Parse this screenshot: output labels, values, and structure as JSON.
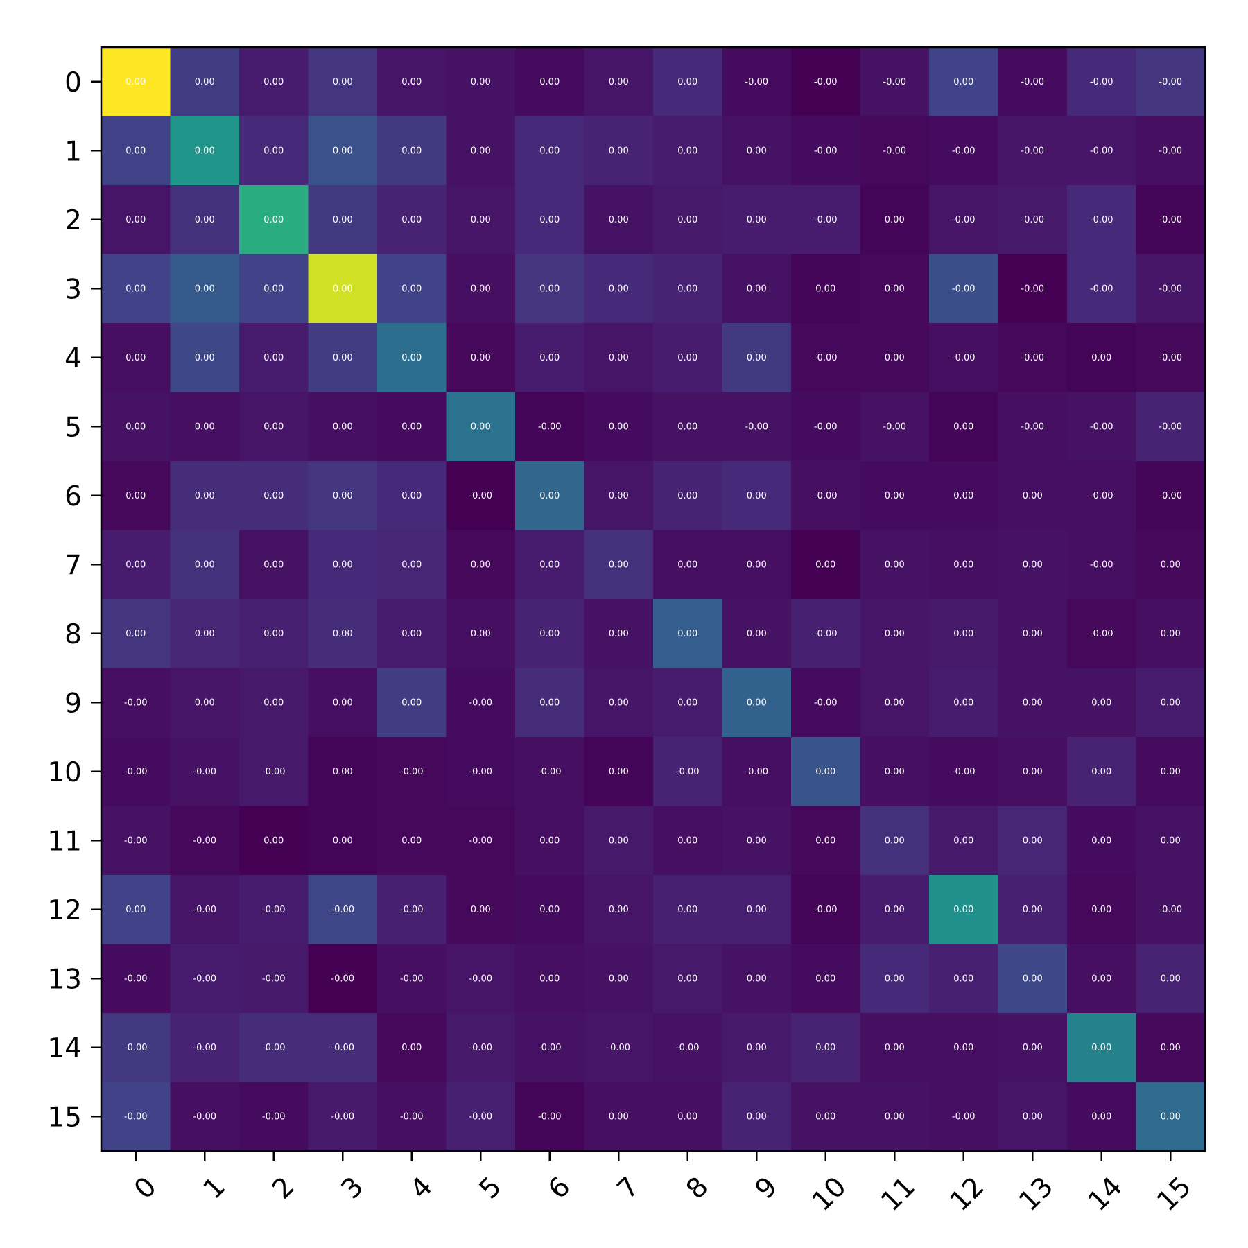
{
  "chart_data": {
    "type": "heatmap",
    "colormap": "viridis",
    "x_tick_labels": [
      "0",
      "1",
      "2",
      "3",
      "4",
      "5",
      "6",
      "7",
      "8",
      "9",
      "10",
      "11",
      "12",
      "13",
      "14",
      "15"
    ],
    "y_tick_labels": [
      "0",
      "1",
      "2",
      "3",
      "4",
      "5",
      "6",
      "7",
      "8",
      "9",
      "10",
      "11",
      "12",
      "13",
      "14",
      "15"
    ],
    "cell_labels": [
      [
        "0.00",
        "0.00",
        "0.00",
        "0.00",
        "0.00",
        "0.00",
        "0.00",
        "0.00",
        "0.00",
        "-0.00",
        "-0.00",
        "-0.00",
        "0.00",
        "-0.00",
        "-0.00",
        "-0.00"
      ],
      [
        "0.00",
        "0.00",
        "0.00",
        "0.00",
        "0.00",
        "0.00",
        "0.00",
        "0.00",
        "0.00",
        "0.00",
        "-0.00",
        "-0.00",
        "-0.00",
        "-0.00",
        "-0.00",
        "-0.00"
      ],
      [
        "0.00",
        "0.00",
        "0.00",
        "0.00",
        "0.00",
        "0.00",
        "0.00",
        "0.00",
        "0.00",
        "0.00",
        "-0.00",
        "0.00",
        "-0.00",
        "-0.00",
        "-0.00",
        "-0.00"
      ],
      [
        "0.00",
        "0.00",
        "0.00",
        "0.00",
        "0.00",
        "0.00",
        "0.00",
        "0.00",
        "0.00",
        "0.00",
        "0.00",
        "0.00",
        "-0.00",
        "-0.00",
        "-0.00",
        "-0.00"
      ],
      [
        "0.00",
        "0.00",
        "0.00",
        "0.00",
        "0.00",
        "0.00",
        "0.00",
        "0.00",
        "0.00",
        "0.00",
        "-0.00",
        "0.00",
        "-0.00",
        "-0.00",
        "0.00",
        "-0.00"
      ],
      [
        "0.00",
        "0.00",
        "0.00",
        "0.00",
        "0.00",
        "0.00",
        "-0.00",
        "0.00",
        "0.00",
        "-0.00",
        "-0.00",
        "-0.00",
        "0.00",
        "-0.00",
        "-0.00",
        "-0.00"
      ],
      [
        "0.00",
        "0.00",
        "0.00",
        "0.00",
        "0.00",
        "-0.00",
        "0.00",
        "0.00",
        "0.00",
        "0.00",
        "-0.00",
        "0.00",
        "0.00",
        "0.00",
        "-0.00",
        "-0.00"
      ],
      [
        "0.00",
        "0.00",
        "0.00",
        "0.00",
        "0.00",
        "0.00",
        "0.00",
        "0.00",
        "0.00",
        "0.00",
        "0.00",
        "0.00",
        "0.00",
        "0.00",
        "-0.00",
        "0.00"
      ],
      [
        "0.00",
        "0.00",
        "0.00",
        "0.00",
        "0.00",
        "0.00",
        "0.00",
        "0.00",
        "0.00",
        "0.00",
        "-0.00",
        "0.00",
        "0.00",
        "0.00",
        "-0.00",
        "0.00"
      ],
      [
        "-0.00",
        "0.00",
        "0.00",
        "0.00",
        "0.00",
        "-0.00",
        "0.00",
        "0.00",
        "0.00",
        "0.00",
        "-0.00",
        "0.00",
        "0.00",
        "0.00",
        "0.00",
        "0.00"
      ],
      [
        "-0.00",
        "-0.00",
        "-0.00",
        "0.00",
        "-0.00",
        "-0.00",
        "-0.00",
        "0.00",
        "-0.00",
        "-0.00",
        "0.00",
        "0.00",
        "-0.00",
        "0.00",
        "0.00",
        "0.00"
      ],
      [
        "-0.00",
        "-0.00",
        "0.00",
        "0.00",
        "0.00",
        "-0.00",
        "0.00",
        "0.00",
        "0.00",
        "0.00",
        "0.00",
        "0.00",
        "0.00",
        "0.00",
        "0.00",
        "0.00"
      ],
      [
        "0.00",
        "-0.00",
        "-0.00",
        "-0.00",
        "-0.00",
        "0.00",
        "0.00",
        "0.00",
        "0.00",
        "0.00",
        "-0.00",
        "0.00",
        "0.00",
        "0.00",
        "0.00",
        "-0.00"
      ],
      [
        "-0.00",
        "-0.00",
        "-0.00",
        "-0.00",
        "-0.00",
        "-0.00",
        "0.00",
        "0.00",
        "0.00",
        "0.00",
        "0.00",
        "0.00",
        "0.00",
        "0.00",
        "0.00",
        "0.00"
      ],
      [
        "-0.00",
        "-0.00",
        "-0.00",
        "-0.00",
        "0.00",
        "-0.00",
        "-0.00",
        "-0.00",
        "-0.00",
        "0.00",
        "0.00",
        "0.00",
        "0.00",
        "0.00",
        "0.00",
        "0.00"
      ],
      [
        "-0.00",
        "-0.00",
        "-0.00",
        "-0.00",
        "-0.00",
        "-0.00",
        "-0.00",
        "0.00",
        "0.00",
        "0.00",
        "0.00",
        "0.00",
        "-0.00",
        "0.00",
        "0.00",
        "0.00"
      ]
    ],
    "intensity": [
      [
        1.0,
        0.18,
        0.08,
        0.16,
        0.06,
        0.05,
        0.03,
        0.06,
        0.12,
        0.03,
        0.0,
        0.05,
        0.2,
        0.03,
        0.12,
        0.16
      ],
      [
        0.2,
        0.52,
        0.12,
        0.25,
        0.17,
        0.05,
        0.12,
        0.1,
        0.08,
        0.05,
        0.03,
        0.02,
        0.03,
        0.06,
        0.06,
        0.04
      ],
      [
        0.06,
        0.14,
        0.62,
        0.17,
        0.1,
        0.06,
        0.12,
        0.05,
        0.07,
        0.08,
        0.08,
        0.01,
        0.06,
        0.07,
        0.12,
        0.01
      ],
      [
        0.2,
        0.28,
        0.2,
        0.93,
        0.2,
        0.04,
        0.16,
        0.12,
        0.1,
        0.05,
        0.01,
        0.02,
        0.24,
        0.0,
        0.12,
        0.06
      ],
      [
        0.04,
        0.22,
        0.08,
        0.18,
        0.36,
        0.02,
        0.08,
        0.06,
        0.08,
        0.17,
        0.02,
        0.02,
        0.04,
        0.02,
        0.01,
        0.02
      ],
      [
        0.05,
        0.04,
        0.06,
        0.04,
        0.03,
        0.38,
        0.01,
        0.03,
        0.05,
        0.05,
        0.03,
        0.05,
        0.01,
        0.04,
        0.05,
        0.1
      ],
      [
        0.02,
        0.13,
        0.13,
        0.16,
        0.12,
        0.0,
        0.33,
        0.06,
        0.1,
        0.12,
        0.04,
        0.03,
        0.03,
        0.04,
        0.04,
        0.01
      ],
      [
        0.08,
        0.14,
        0.05,
        0.12,
        0.11,
        0.02,
        0.08,
        0.14,
        0.04,
        0.04,
        0.0,
        0.05,
        0.04,
        0.05,
        0.04,
        0.02
      ],
      [
        0.16,
        0.11,
        0.09,
        0.13,
        0.08,
        0.04,
        0.1,
        0.05,
        0.3,
        0.05,
        0.09,
        0.06,
        0.07,
        0.05,
        0.02,
        0.04
      ],
      [
        0.04,
        0.06,
        0.07,
        0.04,
        0.18,
        0.03,
        0.13,
        0.06,
        0.08,
        0.31,
        0.03,
        0.06,
        0.08,
        0.05,
        0.05,
        0.08
      ],
      [
        0.03,
        0.05,
        0.07,
        0.01,
        0.02,
        0.03,
        0.04,
        0.01,
        0.1,
        0.04,
        0.26,
        0.04,
        0.03,
        0.04,
        0.1,
        0.03
      ],
      [
        0.05,
        0.02,
        0.0,
        0.01,
        0.02,
        0.02,
        0.04,
        0.07,
        0.04,
        0.05,
        0.02,
        0.14,
        0.07,
        0.11,
        0.03,
        0.05
      ],
      [
        0.2,
        0.06,
        0.08,
        0.21,
        0.09,
        0.02,
        0.03,
        0.06,
        0.09,
        0.09,
        0.01,
        0.08,
        0.5,
        0.09,
        0.02,
        0.05
      ],
      [
        0.03,
        0.08,
        0.07,
        0.0,
        0.04,
        0.06,
        0.04,
        0.05,
        0.07,
        0.05,
        0.03,
        0.12,
        0.09,
        0.22,
        0.04,
        0.1
      ],
      [
        0.17,
        0.1,
        0.13,
        0.13,
        0.02,
        0.07,
        0.05,
        0.06,
        0.05,
        0.07,
        0.1,
        0.04,
        0.04,
        0.05,
        0.44,
        0.02
      ],
      [
        0.2,
        0.04,
        0.03,
        0.07,
        0.04,
        0.09,
        0.01,
        0.04,
        0.04,
        0.1,
        0.05,
        0.05,
        0.04,
        0.06,
        0.03,
        0.35
      ]
    ]
  }
}
